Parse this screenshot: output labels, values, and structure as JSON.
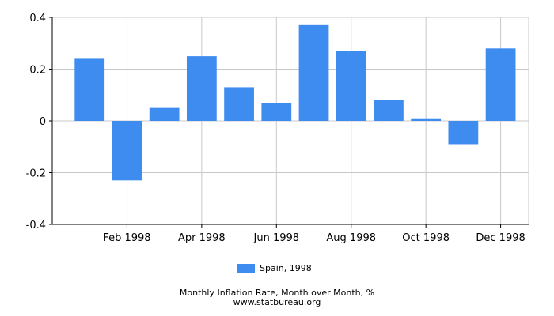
{
  "chart_data": {
    "type": "bar",
    "categories": [
      "Jan 1998",
      "Feb 1998",
      "Mar 1998",
      "Apr 1998",
      "May 1998",
      "Jun 1998",
      "Jul 1998",
      "Aug 1998",
      "Sep 1998",
      "Oct 1998",
      "Nov 1998",
      "Dec 1998"
    ],
    "series": [
      {
        "name": "Spain, 1998",
        "values": [
          0.24,
          -0.23,
          0.05,
          0.25,
          0.13,
          0.07,
          0.37,
          0.27,
          0.08,
          0.01,
          -0.09,
          0.28
        ]
      }
    ],
    "x_tick_labels": [
      "Feb 1998",
      "Apr 1998",
      "Jun 1998",
      "Aug 1998",
      "Oct 1998",
      "Dec 1998"
    ],
    "y_ticks": [
      0.4,
      0.2,
      0,
      -0.2,
      -0.4
    ],
    "y_tick_labels": [
      "0.4",
      "0.2",
      "0",
      "-0.2",
      "-0.4"
    ],
    "ylim": [
      -0.4,
      0.4
    ],
    "grid": true,
    "legend_position": "bottom",
    "bar_color": "#3f8cf0",
    "grid_color": "#c8c8c8"
  },
  "legend": {
    "label": "Spain, 1998"
  },
  "footer": {
    "title": "Monthly Inflation Rate, Month over Month, %",
    "site": "www.statbureau.org"
  }
}
